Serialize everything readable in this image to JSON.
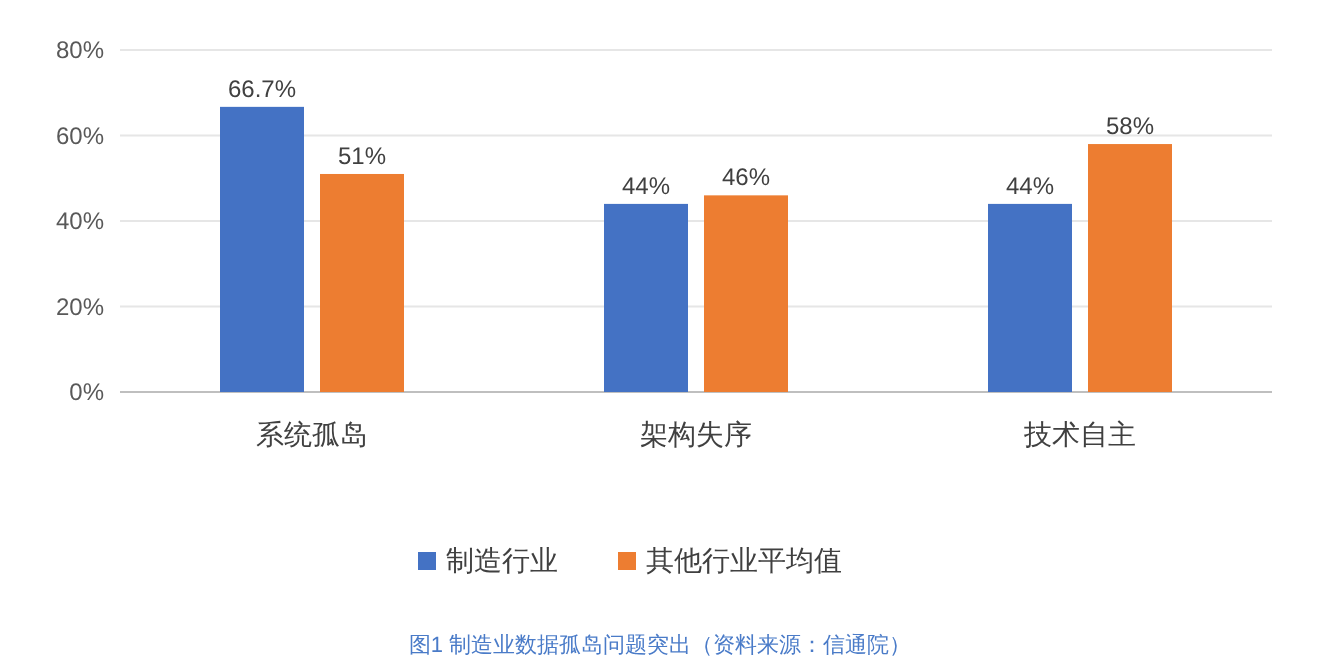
{
  "chart_data": {
    "type": "bar",
    "categories": [
      "系统孤岛",
      "架构失序",
      "技术自主"
    ],
    "series": [
      {
        "name": "制造行业",
        "color": "#4472c4",
        "values": [
          66.7,
          44,
          44
        ],
        "value_labels": [
          "66.7%",
          "44%",
          "44%"
        ]
      },
      {
        "name": "其他行业平均值",
        "color": "#ed7d31",
        "values": [
          51,
          46,
          58
        ],
        "value_labels": [
          "51%",
          "46%",
          "58%"
        ]
      }
    ],
    "ylim": [
      0,
      80
    ],
    "yticks": [
      {
        "value": 0,
        "label": "0%"
      },
      {
        "value": 20,
        "label": "20%"
      },
      {
        "value": 40,
        "label": "40%"
      },
      {
        "value": 60,
        "label": "60%"
      },
      {
        "value": 80,
        "label": "80%"
      }
    ],
    "grid": "y",
    "legend": "bottom",
    "annotations": [
      "图1 制造业数据孤岛问题突出（资料来源：信通院）"
    ]
  }
}
